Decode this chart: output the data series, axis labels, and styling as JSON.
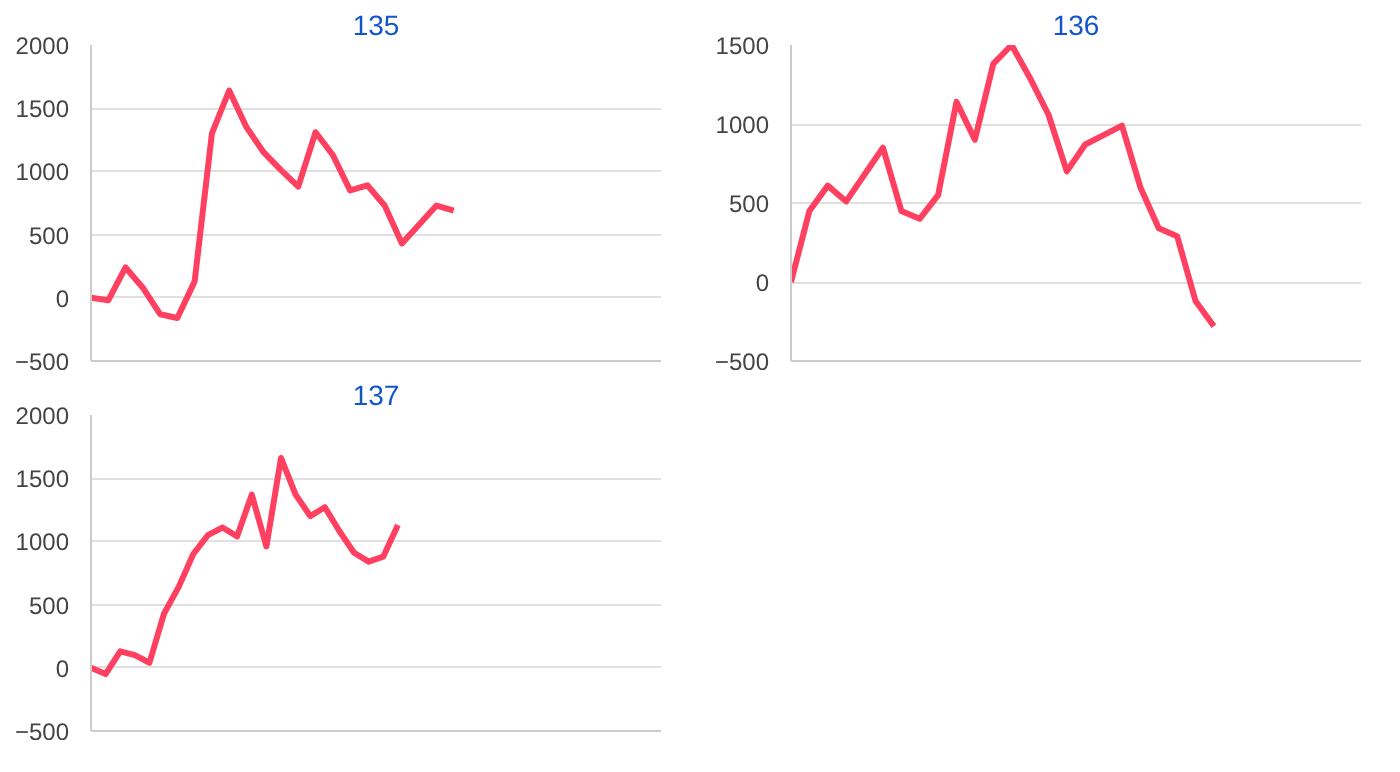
{
  "chart_data": [
    {
      "type": "line",
      "title": "135",
      "categories": [
        null,
        null,
        null,
        null,
        null,
        null,
        null,
        null,
        null,
        null,
        null,
        null,
        null,
        null,
        null,
        null,
        null,
        null,
        null,
        null,
        null,
        null,
        null,
        null,
        null,
        null,
        null,
        null,
        null,
        null,
        null,
        null,
        null,
        null
      ],
      "series": [
        {
          "color": "#ff4060",
          "values": [
            0,
            -20,
            240,
            80,
            -130,
            -160,
            130,
            1300,
            1640,
            1350,
            1150,
            1010,
            880,
            1310,
            1130,
            850,
            890,
            730,
            430,
            580,
            730,
            690,
            null,
            null,
            null,
            null,
            null,
            null,
            null,
            null,
            null,
            null,
            null,
            null
          ]
        }
      ],
      "ylim": [
        -500,
        2000
      ],
      "yticks": [
        -500,
        0,
        500,
        1000,
        1500,
        2000
      ],
      "grid": "y",
      "tick_labels": "y"
    },
    {
      "type": "line",
      "title": "136",
      "categories": [
        null,
        null,
        null,
        null,
        null,
        null,
        null,
        null,
        null,
        null,
        null,
        null,
        null,
        null,
        null,
        null,
        null,
        null,
        null,
        null,
        null,
        null,
        null,
        null,
        null,
        null,
        null,
        null,
        null,
        null,
        null,
        null
      ],
      "series": [
        {
          "color": "#ff4060",
          "values": [
            0,
            450,
            610,
            510,
            680,
            850,
            450,
            400,
            550,
            1140,
            900,
            1380,
            1500,
            1290,
            1060,
            700,
            870,
            930,
            990,
            600,
            340,
            290,
            -120,
            -280,
            null,
            null,
            null,
            null,
            null,
            null,
            null,
            null
          ]
        }
      ],
      "ylim": [
        -500,
        1500
      ],
      "yticks": [
        -500,
        0,
        500,
        1000,
        1500
      ],
      "grid": "y",
      "tick_labels": "y"
    },
    {
      "type": "line",
      "title": "137",
      "categories": [
        null,
        null,
        null,
        null,
        null,
        null,
        null,
        null,
        null,
        null,
        null,
        null,
        null,
        null,
        null,
        null,
        null,
        null,
        null,
        null,
        null,
        null,
        null,
        null,
        null,
        null,
        null,
        null,
        null,
        null,
        null,
        null,
        null,
        null,
        null,
        null,
        null,
        null,
        null,
        null
      ],
      "series": [
        {
          "color": "#ff4060",
          "values": [
            0,
            -50,
            130,
            100,
            40,
            430,
            640,
            900,
            1050,
            1110,
            1040,
            1370,
            960,
            1660,
            1370,
            1200,
            1270,
            1080,
            910,
            840,
            880,
            1130,
            null,
            null,
            null,
            null,
            null,
            null,
            null,
            null,
            null,
            null,
            null,
            null,
            null,
            null,
            null,
            null,
            null,
            null
          ]
        }
      ],
      "ylim": [
        -500,
        2000
      ],
      "yticks": [
        -500,
        0,
        500,
        1000,
        1500,
        2000
      ],
      "grid": "y",
      "tick_labels": "y"
    }
  ]
}
